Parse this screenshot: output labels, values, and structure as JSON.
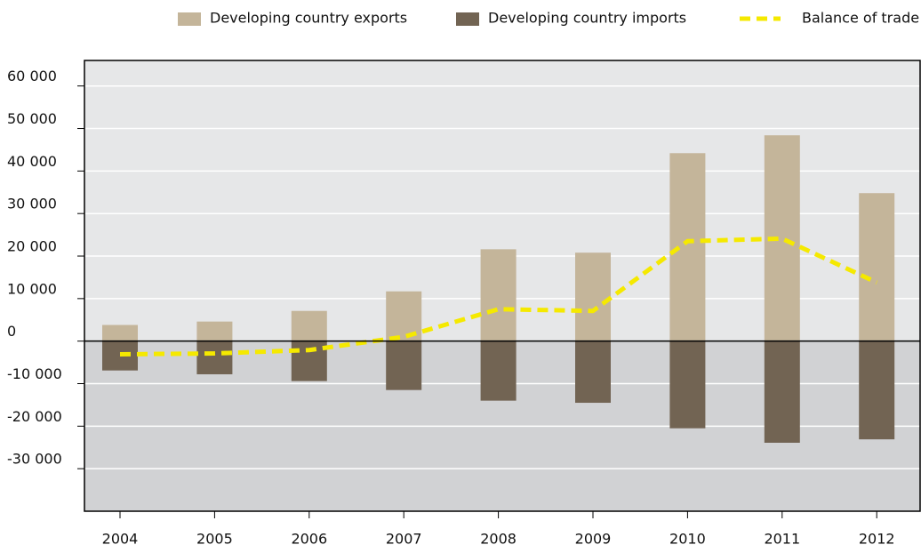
{
  "chart_data": {
    "type": "bar",
    "categories": [
      "2004",
      "2005",
      "2006",
      "2007",
      "2008",
      "2009",
      "2010",
      "2011",
      "2012"
    ],
    "series": [
      {
        "name": "Developing country exports",
        "color": "#c4b59a",
        "type": "bar",
        "values": [
          3800,
          4600,
          7100,
          11700,
          21600,
          20800,
          44200,
          48400,
          34800
        ]
      },
      {
        "name": "Developing country imports",
        "color": "#726453",
        "type": "bar",
        "values": [
          -6900,
          -7800,
          -9400,
          -11500,
          -14000,
          -14500,
          -20500,
          -23900,
          -23100
        ]
      },
      {
        "name": "Balance of trade",
        "color": "#f5e900",
        "type": "line",
        "values": [
          -3100,
          -2900,
          -2100,
          1000,
          7500,
          7100,
          23500,
          24100,
          13800
        ]
      }
    ],
    "ylim": [
      -40000,
      66000
    ],
    "yticks": [
      {
        "value": -30000,
        "label": "-30 000"
      },
      {
        "value": -20000,
        "label": "-20 000"
      },
      {
        "value": -10000,
        "label": "-10 000"
      },
      0,
      {
        "value": 10000,
        "label": "10 000"
      },
      {
        "value": 20000,
        "label": "20 000"
      },
      {
        "value": 30000,
        "label": "30 000"
      },
      {
        "value": 40000,
        "label": "40 000"
      },
      {
        "value": 50000,
        "label": "50 000"
      },
      {
        "value": 60000,
        "label": "60 000"
      }
    ],
    "grid": true
  }
}
